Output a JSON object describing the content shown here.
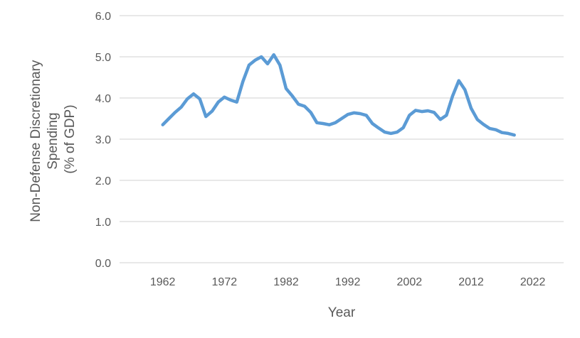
{
  "chart_data": {
    "type": "line",
    "title": "",
    "xlabel": "Year",
    "ylabel_lines": [
      "Non-Defense Discretionary",
      "Spending",
      "(% of GDP)"
    ],
    "xlim": [
      1955,
      2027
    ],
    "ylim": [
      0,
      6
    ],
    "x_ticks": [
      1962,
      1972,
      1982,
      1992,
      2002,
      2012,
      2022
    ],
    "y_ticks": [
      0,
      1,
      2,
      3,
      4,
      5,
      6
    ],
    "y_tick_labels": [
      "0.0",
      "1.0",
      "2.0",
      "3.0",
      "4.0",
      "5.0",
      "6.0"
    ],
    "grid": true,
    "line_color": "#5B9BD5",
    "series": [
      {
        "name": "",
        "x": [
          1962,
          1963,
          1964,
          1965,
          1966,
          1967,
          1968,
          1969,
          1970,
          1971,
          1972,
          1973,
          1974,
          1975,
          1976,
          1977,
          1978,
          1979,
          1980,
          1981,
          1982,
          1983,
          1984,
          1985,
          1986,
          1987,
          1988,
          1989,
          1990,
          1991,
          1992,
          1993,
          1994,
          1995,
          1996,
          1997,
          1998,
          1999,
          2000,
          2001,
          2002,
          2003,
          2004,
          2005,
          2006,
          2007,
          2008,
          2009,
          2010,
          2011,
          2012,
          2013,
          2014,
          2015,
          2016,
          2017,
          2018,
          2019
        ],
        "values": [
          3.35,
          3.5,
          3.65,
          3.78,
          3.98,
          4.1,
          3.98,
          3.55,
          3.68,
          3.9,
          4.02,
          3.95,
          3.9,
          4.4,
          4.8,
          4.92,
          5.0,
          4.83,
          5.05,
          4.8,
          4.23,
          4.05,
          3.85,
          3.8,
          3.65,
          3.4,
          3.38,
          3.35,
          3.4,
          3.5,
          3.6,
          3.64,
          3.62,
          3.58,
          3.38,
          3.27,
          3.17,
          3.14,
          3.17,
          3.28,
          3.58,
          3.7,
          3.67,
          3.69,
          3.65,
          3.48,
          3.58,
          4.05,
          4.42,
          4.2,
          3.75,
          3.48,
          3.36,
          3.26,
          3.23,
          3.16,
          3.14,
          3.1
        ]
      }
    ]
  }
}
